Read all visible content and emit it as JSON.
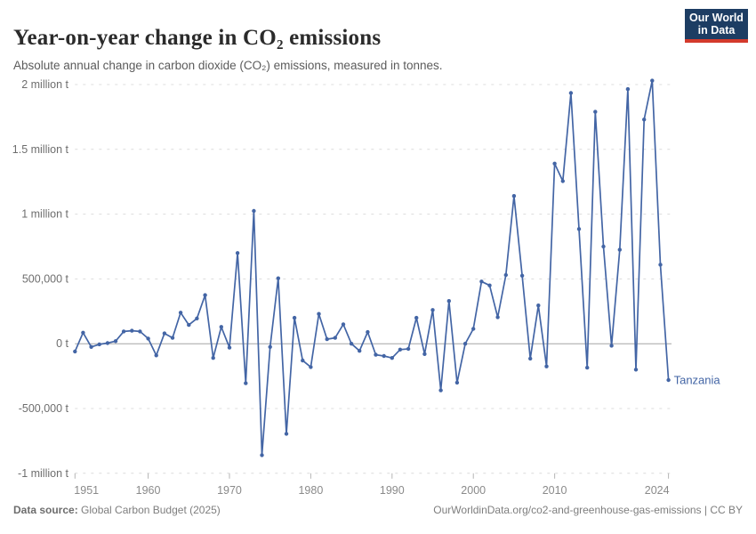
{
  "header": {
    "title": "Year-on-year change in CO₂ emissions",
    "subtitle": "Absolute annual change in carbon dioxide (CO₂) emissions, measured in tonnes.",
    "logo": {
      "line1": "Our World",
      "line2": "in Data"
    }
  },
  "footer": {
    "source_label": "Data source:",
    "source_value": " Global Carbon Budget (2025)",
    "link_text": "OurWorldinData.org/co2-and-greenhouse-gas-emissions | CC BY"
  },
  "colors": {
    "line": "#4365a5",
    "entity_label": "#4365a5",
    "grid": "#dcdcdc",
    "zero_line": "#a5a5a5",
    "tick_mark": "#b5b5b5",
    "y_tick_text": "#6e6e6e",
    "x_tick_text": "#8a8a8a",
    "logo_bg": "#1d3d63",
    "logo_red": "#d33a2c"
  },
  "chart_data": {
    "type": "line",
    "title": "Year-on-year change in CO₂ emissions",
    "xlabel": "",
    "ylabel": "",
    "unit": "t",
    "grid": "horizontal-dashed",
    "legend_position": "end-of-line-label",
    "xlim": [
      1951,
      2024
    ],
    "ylim": [
      -1000000,
      2000000
    ],
    "x_ticks": [
      1951,
      1960,
      1970,
      1980,
      1990,
      2000,
      2010,
      2024
    ],
    "y_ticks": [
      {
        "value": 2000000,
        "label": "2 million t"
      },
      {
        "value": 1500000,
        "label": "1.5 million t"
      },
      {
        "value": 1000000,
        "label": "1 million t"
      },
      {
        "value": 500000,
        "label": "500,000 t"
      },
      {
        "value": 0,
        "label": "0 t"
      },
      {
        "value": -500000,
        "label": "-500,000 t"
      },
      {
        "value": -1000000,
        "label": "-1 million t"
      }
    ],
    "x": [
      1951,
      1952,
      1953,
      1954,
      1955,
      1956,
      1957,
      1958,
      1959,
      1960,
      1961,
      1962,
      1963,
      1964,
      1965,
      1966,
      1967,
      1968,
      1969,
      1970,
      1971,
      1972,
      1973,
      1974,
      1975,
      1976,
      1977,
      1978,
      1979,
      1980,
      1981,
      1982,
      1983,
      1984,
      1985,
      1986,
      1987,
      1988,
      1989,
      1990,
      1991,
      1992,
      1993,
      1994,
      1995,
      1996,
      1997,
      1998,
      1999,
      2000,
      2001,
      2002,
      2003,
      2004,
      2005,
      2006,
      2007,
      2008,
      2009,
      2010,
      2011,
      2012,
      2013,
      2014,
      2015,
      2016,
      2017,
      2018,
      2019,
      2020,
      2021,
      2022,
      2023,
      2024
    ],
    "series": [
      {
        "name": "Tanzania",
        "values": [
          -60000,
          85000,
          -25000,
          -5000,
          5000,
          20000,
          95000,
          100000,
          95000,
          40000,
          -90000,
          80000,
          45000,
          240000,
          145000,
          195000,
          375000,
          -110000,
          130000,
          -30000,
          700000,
          -305000,
          1025000,
          -860000,
          -25000,
          505000,
          -695000,
          200000,
          -130000,
          -180000,
          230000,
          35000,
          45000,
          150000,
          0,
          -55000,
          90000,
          -85000,
          -95000,
          -110000,
          -45000,
          -40000,
          200000,
          -80000,
          260000,
          -360000,
          330000,
          -300000,
          0,
          115000,
          480000,
          450000,
          205000,
          530000,
          1140000,
          525000,
          -115000,
          295000,
          -175000,
          1390000,
          1255000,
          1935000,
          885000,
          -185000,
          1790000,
          750000,
          -15000,
          725000,
          1965000,
          -200000,
          1730000,
          2030000,
          610000,
          -280000
        ]
      }
    ]
  }
}
